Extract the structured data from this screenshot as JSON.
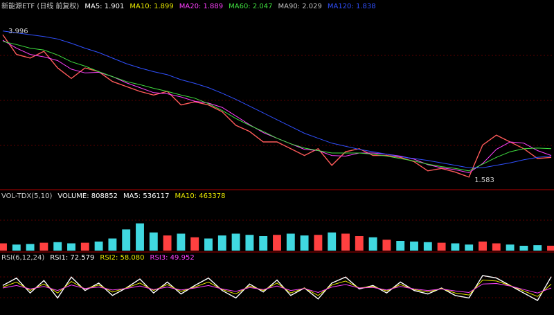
{
  "chart_data": [
    {
      "type": "line",
      "header": [
        {
          "text": "新能源ETF (日线 前复权)",
          "color": "#d0d0d0"
        },
        {
          "text": "MA5: 1.901",
          "color": "#ffffff"
        },
        {
          "text": "MA10: 1.899",
          "color": "#e8e800"
        },
        {
          "text": "MA20: 1.889",
          "color": "#ff40ff"
        },
        {
          "text": "MA60: 2.047",
          "color": "#40e040"
        },
        {
          "text": "MA90: 2.029",
          "color": "#c0c0c0"
        },
        {
          "text": "MA120: 1.838",
          "color": "#3050ff"
        }
      ],
      "annotations": [
        3.996,
        1.583
      ],
      "ylim": [
        1.47,
        4.3
      ],
      "series": [
        {
          "color": "#ff5a5a",
          "values": [
            3.94,
            3.62,
            3.56,
            3.67,
            3.4,
            3.23,
            3.4,
            3.34,
            3.18,
            3.1,
            3.02,
            2.96,
            3.02,
            2.8,
            2.85,
            2.8,
            2.69,
            2.47,
            2.37,
            2.2,
            2.2,
            2.09,
            1.98,
            2.09,
            1.82,
            2.04,
            2.09,
            1.98,
            1.98,
            1.95,
            1.88,
            1.73,
            1.77,
            1.71,
            1.63,
            2.15,
            2.31,
            2.2,
            2.09,
            1.93,
            1.95
          ]
        },
        {
          "color": "#ff40ff",
          "values": [
            3.85,
            3.72,
            3.62,
            3.58,
            3.52,
            3.38,
            3.32,
            3.33,
            3.26,
            3.16,
            3.08,
            3.0,
            2.98,
            2.93,
            2.86,
            2.83,
            2.76,
            2.62,
            2.48,
            2.35,
            2.26,
            2.17,
            2.08,
            2.06,
            1.98,
            1.97,
            2.02,
            2.02,
            2.0,
            1.97,
            1.92,
            1.83,
            1.78,
            1.75,
            1.7,
            1.85,
            2.08,
            2.2,
            2.18,
            2.06,
            1.98
          ]
        },
        {
          "color": "#40e040",
          "values": [
            3.83,
            3.78,
            3.72,
            3.69,
            3.61,
            3.5,
            3.43,
            3.34,
            3.26,
            3.18,
            3.13,
            3.07,
            3.02,
            2.96,
            2.91,
            2.82,
            2.71,
            2.58,
            2.47,
            2.37,
            2.26,
            2.17,
            2.1,
            2.06,
            2.02,
            2.02,
            2.02,
            2.0,
            1.97,
            1.93,
            1.89,
            1.84,
            1.8,
            1.77,
            1.73,
            1.84,
            1.95,
            2.04,
            2.09,
            2.1,
            2.09
          ]
        },
        {
          "color": "#3050ff",
          "values": [
            4.0,
            3.97,
            3.94,
            3.91,
            3.87,
            3.8,
            3.72,
            3.65,
            3.56,
            3.47,
            3.4,
            3.34,
            3.29,
            3.21,
            3.15,
            3.08,
            2.99,
            2.89,
            2.78,
            2.67,
            2.56,
            2.45,
            2.34,
            2.26,
            2.18,
            2.13,
            2.08,
            2.04,
            2.0,
            1.96,
            1.93,
            1.9,
            1.86,
            1.82,
            1.78,
            1.78,
            1.82,
            1.86,
            1.91,
            1.95,
            1.97
          ]
        }
      ]
    },
    {
      "type": "bar",
      "header": [
        {
          "text": "VOL-TDX(5,10)",
          "color": "#d0d0d0"
        },
        {
          "text": "VOLUME: 808852",
          "color": "#ffffff"
        },
        {
          "text": "MA5: 536117",
          "color": "#ffffff"
        },
        {
          "text": "MA10: 463378",
          "color": "#e8e800"
        }
      ],
      "up_color": "#ff4040",
      "down_color": "#40d8e0",
      "ylim": [
        0,
        8000000
      ],
      "values": [
        1200000,
        1000000,
        1100000,
        1300000,
        1400000,
        1200000,
        1300000,
        1500000,
        2000000,
        3500000,
        4500000,
        3000000,
        2500000,
        2800000,
        2200000,
        2000000,
        2500000,
        2800000,
        2600000,
        2400000,
        2600000,
        2800000,
        2500000,
        2600000,
        3000000,
        2800000,
        2400000,
        2200000,
        1800000,
        1600000,
        1500000,
        1400000,
        1300000,
        1200000,
        1000000,
        1500000,
        1200000,
        1000000,
        800000,
        900000,
        808852
      ]
    },
    {
      "type": "line",
      "header": [
        {
          "text": "RSI(6,12,24)",
          "color": "#d0d0d0"
        },
        {
          "text": "RSI1: 72.579",
          "color": "#ffffff"
        },
        {
          "text": "RSI2: 58.080",
          "color": "#e8e800"
        },
        {
          "text": "RSI3: 49.952",
          "color": "#ff40ff"
        }
      ],
      "ylim": [
        0,
        100
      ],
      "series": [
        {
          "color": "#ffffff",
          "values": [
            55,
            70,
            40,
            65,
            30,
            72,
            45,
            60,
            35,
            50,
            68,
            40,
            62,
            38,
            55,
            70,
            45,
            30,
            58,
            42,
            66,
            35,
            50,
            28,
            60,
            72,
            48,
            55,
            40,
            62,
            45,
            38,
            50,
            35,
            30,
            75,
            70,
            55,
            40,
            25,
            72.579
          ]
        },
        {
          "color": "#e8e800",
          "values": [
            52,
            62,
            45,
            58,
            40,
            63,
            48,
            56,
            42,
            50,
            60,
            45,
            57,
            43,
            52,
            62,
            47,
            38,
            54,
            45,
            60,
            40,
            50,
            35,
            56,
            64,
            50,
            53,
            44,
            57,
            47,
            42,
            49,
            40,
            36,
            66,
            64,
            55,
            44,
            33,
            58.08
          ]
        },
        {
          "color": "#ff40ff",
          "values": [
            50,
            55,
            48,
            53,
            45,
            56,
            49,
            52,
            46,
            49,
            54,
            47,
            52,
            46,
            50,
            55,
            48,
            43,
            51,
            47,
            54,
            45,
            49,
            41,
            52,
            57,
            50,
            51,
            46,
            53,
            48,
            45,
            48,
            44,
            41,
            58,
            59,
            54,
            47,
            40,
            49.952
          ]
        }
      ]
    }
  ]
}
